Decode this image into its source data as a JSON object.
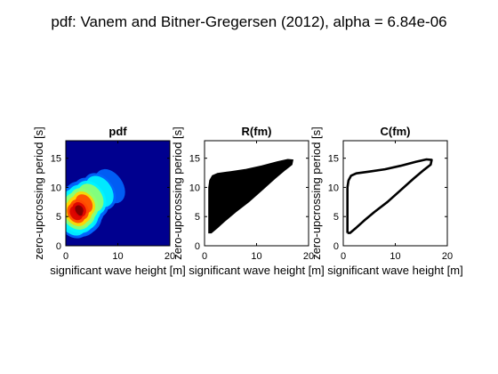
{
  "figure": {
    "suptitle": "pdf: Vanem and Bitner-Gregersen (2012), alpha = 6.84e-06",
    "background": "#ffffff"
  },
  "chart_data": [
    {
      "type": "heatmap",
      "title": "pdf",
      "xlabel": "significant wave height [m]",
      "ylabel": "zero-upcrossing period [s]",
      "xlim": [
        0,
        20
      ],
      "ylim": [
        0,
        18
      ],
      "xticks": [
        "0",
        "10",
        "20"
      ],
      "yticks": [
        "0",
        "5",
        "10",
        "15"
      ],
      "colormap": "jet",
      "background_color": "#00008f",
      "peak": {
        "x": 2.5,
        "y": 6.0
      },
      "density_ridge": [
        {
          "x": 1.2,
          "y": 4.5,
          "level": 0.35
        },
        {
          "x": 2.0,
          "y": 5.6,
          "level": 0.9
        },
        {
          "x": 2.6,
          "y": 6.2,
          "level": 1.0
        },
        {
          "x": 3.5,
          "y": 7.2,
          "level": 0.75
        },
        {
          "x": 4.8,
          "y": 8.2,
          "level": 0.5
        },
        {
          "x": 6.5,
          "y": 9.3,
          "level": 0.3
        },
        {
          "x": 8.5,
          "y": 10.2,
          "level": 0.15
        }
      ]
    },
    {
      "type": "area",
      "title": "R(fm)",
      "xlabel": "significant wave height [m]",
      "ylabel": "zero-upcrossing period [s]",
      "xlim": [
        0,
        20
      ],
      "ylim": [
        0,
        18
      ],
      "xticks": [
        "0",
        "10",
        "20"
      ],
      "yticks": [
        "0",
        "5",
        "10",
        "15"
      ],
      "fill_color": "#000000",
      "region": [
        {
          "x": 0.8,
          "y": 2.2
        },
        {
          "x": 0.8,
          "y": 3.5
        },
        {
          "x": 0.8,
          "y": 5.5
        },
        {
          "x": 0.8,
          "y": 8.0
        },
        {
          "x": 0.8,
          "y": 10.0
        },
        {
          "x": 1.0,
          "y": 11.2
        },
        {
          "x": 1.5,
          "y": 12.0
        },
        {
          "x": 2.5,
          "y": 12.4
        },
        {
          "x": 5.0,
          "y": 12.7
        },
        {
          "x": 8.0,
          "y": 13.1
        },
        {
          "x": 11.0,
          "y": 13.7
        },
        {
          "x": 14.0,
          "y": 14.4
        },
        {
          "x": 16.0,
          "y": 14.8
        },
        {
          "x": 17.0,
          "y": 14.7
        },
        {
          "x": 16.8,
          "y": 13.9
        },
        {
          "x": 15.5,
          "y": 13.0
        },
        {
          "x": 13.5,
          "y": 11.5
        },
        {
          "x": 11.0,
          "y": 9.5
        },
        {
          "x": 8.5,
          "y": 7.5
        },
        {
          "x": 6.0,
          "y": 5.8
        },
        {
          "x": 4.0,
          "y": 4.3
        },
        {
          "x": 2.5,
          "y": 3.1
        },
        {
          "x": 1.3,
          "y": 2.2
        }
      ]
    },
    {
      "type": "line",
      "title": "C(fm)",
      "xlabel": "significant wave height [m]",
      "ylabel": "zero-upcrossing period [s]",
      "xlim": [
        0,
        20
      ],
      "ylim": [
        0,
        18
      ],
      "xticks": [
        "0",
        "10",
        "20"
      ],
      "yticks": [
        "0",
        "5",
        "10",
        "15"
      ],
      "line_color": "#000000",
      "contour": [
        {
          "x": 0.8,
          "y": 2.2
        },
        {
          "x": 0.8,
          "y": 3.5
        },
        {
          "x": 0.8,
          "y": 5.5
        },
        {
          "x": 0.8,
          "y": 8.0
        },
        {
          "x": 0.8,
          "y": 10.0
        },
        {
          "x": 1.0,
          "y": 11.2
        },
        {
          "x": 1.5,
          "y": 12.0
        },
        {
          "x": 2.5,
          "y": 12.4
        },
        {
          "x": 5.0,
          "y": 12.7
        },
        {
          "x": 8.0,
          "y": 13.1
        },
        {
          "x": 11.0,
          "y": 13.7
        },
        {
          "x": 14.0,
          "y": 14.4
        },
        {
          "x": 16.0,
          "y": 14.8
        },
        {
          "x": 17.0,
          "y": 14.7
        },
        {
          "x": 16.8,
          "y": 13.9
        },
        {
          "x": 15.5,
          "y": 13.0
        },
        {
          "x": 13.5,
          "y": 11.5
        },
        {
          "x": 11.0,
          "y": 9.5
        },
        {
          "x": 8.5,
          "y": 7.5
        },
        {
          "x": 6.0,
          "y": 5.8
        },
        {
          "x": 4.0,
          "y": 4.3
        },
        {
          "x": 2.5,
          "y": 3.1
        },
        {
          "x": 1.3,
          "y": 2.2
        },
        {
          "x": 0.8,
          "y": 2.2
        }
      ]
    }
  ]
}
